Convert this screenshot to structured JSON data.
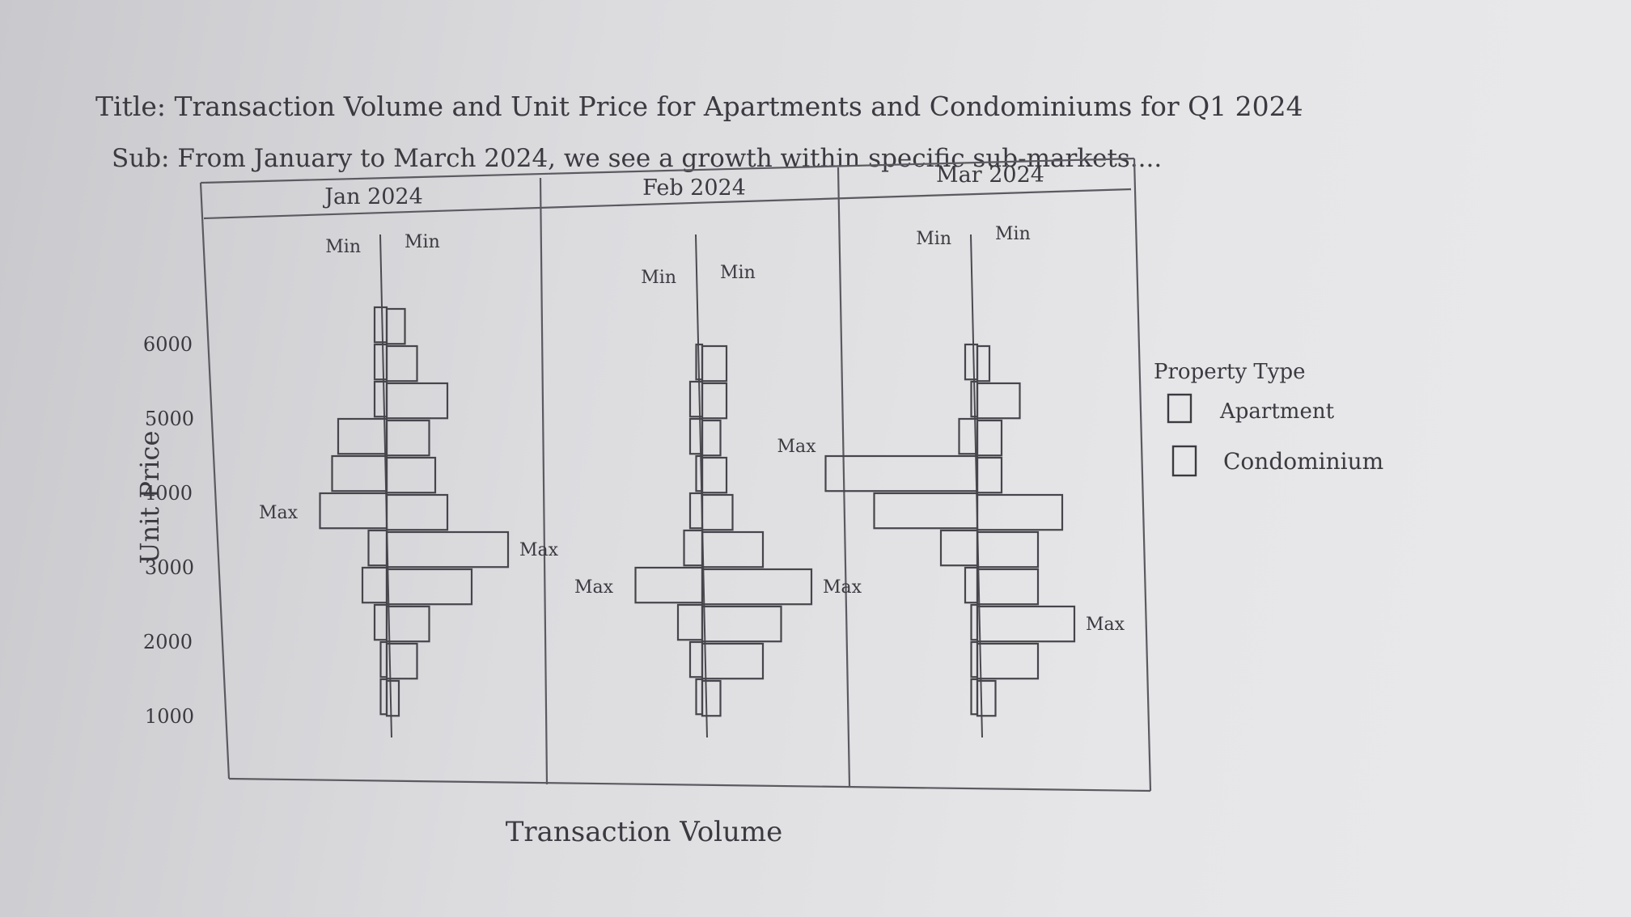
{
  "chart_data": {
    "type": "bar",
    "orientation": "horizontal-back-to-back",
    "title": "Title: Transaction Volume and Unit Price for Apartments and Condominiums for Q1 2024",
    "subtitle": "Sub: From January to March 2024, we see a growth within specific sub-markets....",
    "xlabel": "Transaction Volume",
    "ylabel": "Unit Price",
    "y_ticks": [
      "6000",
      "5000",
      "4000",
      "3000",
      "2000",
      "1000"
    ],
    "ylim": [
      1000,
      6500
    ],
    "price_bins": [
      6250,
      5750,
      5250,
      4750,
      4250,
      3750,
      3250,
      2750,
      2250,
      1750,
      1250
    ],
    "legend": {
      "title": "Property Type",
      "position": "right",
      "entries": [
        "Apartment",
        "Condominium"
      ]
    },
    "panels": [
      {
        "label": "Jan 2024",
        "left_labels": {
          "min": "Min",
          "max": "Max"
        },
        "right_labels": {
          "min": "Min",
          "max": "Max"
        },
        "apartment": [
          2,
          2,
          2,
          8,
          9,
          11,
          3,
          4,
          2,
          1,
          1
        ],
        "condominium": [
          3,
          5,
          10,
          7,
          8,
          10,
          20,
          14,
          7,
          5,
          2
        ]
      },
      {
        "label": "Feb 2024",
        "left_labels": {
          "min": "Min",
          "max": "Max"
        },
        "right_labels": {
          "min": "Min",
          "max": "Max"
        },
        "apartment": [
          0,
          1,
          2,
          2,
          1,
          2,
          3,
          11,
          4,
          2,
          1
        ],
        "condominium": [
          0,
          4,
          4,
          3,
          4,
          5,
          10,
          18,
          13,
          10,
          3
        ]
      },
      {
        "label": "Mar 2024",
        "left_labels": {
          "min": "Min",
          "max": "Max"
        },
        "right_labels": {
          "min": "Min",
          "max": "Max"
        },
        "apartment": [
          0,
          2,
          1,
          3,
          25,
          17,
          6,
          2,
          1,
          1,
          1
        ],
        "condominium": [
          0,
          2,
          7,
          4,
          4,
          14,
          10,
          10,
          16,
          10,
          3
        ]
      }
    ]
  }
}
